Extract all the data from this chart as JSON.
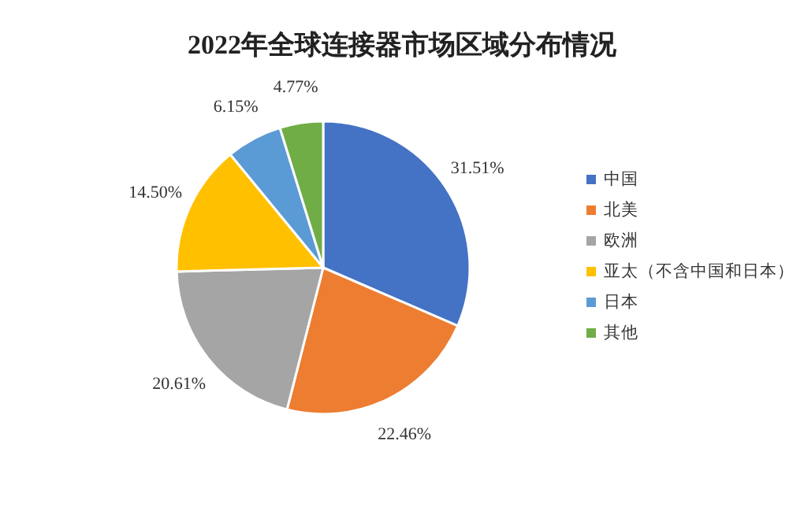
{
  "chart_data": {
    "type": "pie",
    "title": "2022年全球连接器市场区域分布情况",
    "categories": [
      "中国",
      "北美",
      "欧洲",
      "亚太（不含中国和日本）",
      "日本",
      "其他"
    ],
    "values": [
      31.51,
      22.46,
      20.61,
      14.5,
      6.15,
      4.77
    ],
    "value_labels": [
      "31.51%",
      "22.46%",
      "20.61%",
      "14.50%",
      "6.15%",
      "4.77%"
    ],
    "colors": [
      "#4472c4",
      "#ed7d31",
      "#a5a5a5",
      "#ffc000",
      "#5b9bd5",
      "#70ad47"
    ],
    "legend": "right"
  }
}
